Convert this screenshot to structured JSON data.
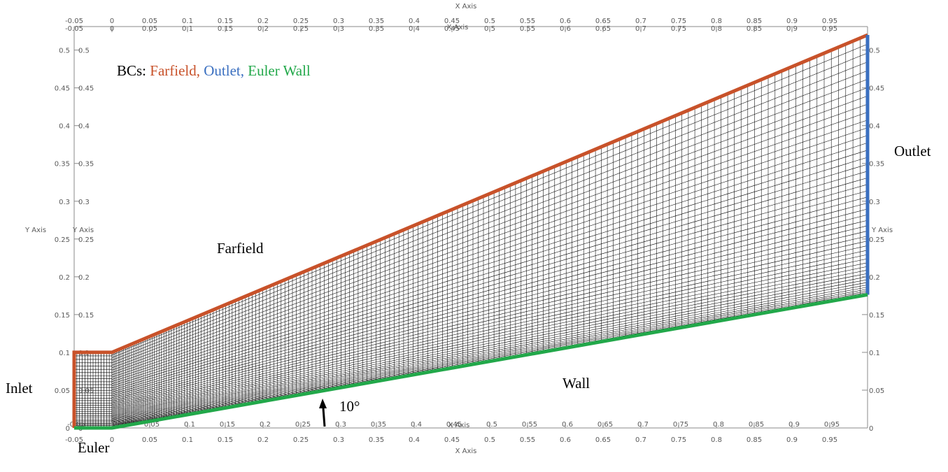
{
  "figure": {
    "bcs_prefix": "BCs: ",
    "bcs_farfield": "Farfield,",
    "bcs_outlet": "Outlet,",
    "bcs_wall": "Euler Wall",
    "label_farfield": "Farfield",
    "label_outlet": "Outlet",
    "label_inlet": "Inlet",
    "label_wall": "Wall",
    "label_euler": "Euler",
    "angle_label": "10°",
    "colors": {
      "farfield": "#c8522a",
      "outlet": "#3a6fc0",
      "wall": "#22a84a",
      "mesh": "#000000",
      "axis": "#7a7a7a"
    }
  },
  "axes": {
    "x_title": "X Axis",
    "y_title": "Y Axis",
    "x_ticks": [
      "-0.05",
      "0",
      "0.05",
      "0.1",
      "0.15",
      "0.2",
      "0.25",
      "0.3",
      "0.35",
      "0.4",
      "0.45",
      "0.5",
      "0.55",
      "0.6",
      "0.65",
      "0.7",
      "0.75",
      "0.8",
      "0.85",
      "0.9",
      "0.95"
    ],
    "y_ticks": [
      "0",
      "0.05",
      "0.1",
      "0.15",
      "0.2",
      "0.25",
      "0.3",
      "0.35",
      "0.4",
      "0.45",
      "0.5"
    ],
    "x_range": [
      -0.05,
      1.0
    ],
    "y_range": [
      0,
      0.52
    ]
  },
  "geometry": {
    "inlet_x": -0.05,
    "corner_x": 0.0,
    "outlet_x": 1.0,
    "inlet_height": 0.1,
    "ramp_angle_deg": 10,
    "farfield_top_at_outlet": 0.52,
    "wall_at_outlet": 0.1763
  }
}
